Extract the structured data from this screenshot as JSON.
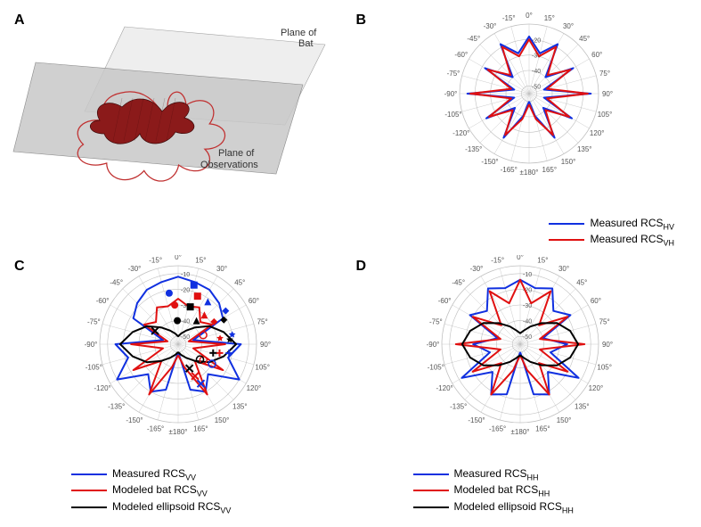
{
  "figure": {
    "panels": {
      "A": {
        "label": "A",
        "labels": {
          "plane_bat": "Plane of\nBat",
          "plane_obs": "Plane of\nObservations"
        },
        "colors": {
          "bat_fill": "#8b1a1a",
          "bat_edge": "#3a0808",
          "plane_bat_fill": "#ededed",
          "plane_obs_fill": "#c8c8c8",
          "rcs_outline": "#c03030"
        }
      },
      "B": {
        "label": "B",
        "polar": {
          "angle_ticks": [
            -180,
            -165,
            -150,
            -135,
            -120,
            -105,
            -90,
            -75,
            -60,
            -45,
            -30,
            -15,
            0,
            15,
            30,
            45,
            60,
            75,
            90,
            105,
            120,
            135,
            150,
            165,
            180
          ],
          "angle_label_fontsize": 8,
          "radial_ticks": [
            -50,
            -40,
            -30,
            -20
          ],
          "radial_min": -55,
          "radial_max": -10,
          "grid_color": "#bfbfbf",
          "tick_label_color": "#555555",
          "background": "#ffffff"
        },
        "series": [
          {
            "name": "Measured RCS_HV",
            "color": "#1030e0",
            "width": 2,
            "angles_deg": [
              -180,
              -165,
              -150,
              -135,
              -120,
              -105,
              -90,
              -75,
              -60,
              -45,
              -30,
              -15,
              0,
              15,
              30,
              45,
              60,
              75,
              90,
              105,
              120,
              135,
              150,
              165,
              180
            ],
            "values": [
              -50,
              -40,
              -22,
              -42,
              -23,
              -45,
              -15,
              -45,
              -22,
              -40,
              -18,
              -28,
              -18,
              -28,
              -18,
              -40,
              -22,
              -45,
              -15,
              -45,
              -23,
              -42,
              -22,
              -40,
              -50
            ]
          },
          {
            "name": "Measured RCS_VH",
            "color": "#e01010",
            "width": 2,
            "angles_deg": [
              -180,
              -165,
              -150,
              -135,
              -120,
              -105,
              -90,
              -75,
              -60,
              -45,
              -30,
              -15,
              0,
              15,
              30,
              45,
              60,
              75,
              90,
              105,
              120,
              135,
              150,
              165,
              180
            ],
            "values": [
              -48,
              -38,
              -24,
              -40,
              -25,
              -43,
              -17,
              -43,
              -24,
              -38,
              -20,
              -30,
              -20,
              -30,
              -20,
              -38,
              -24,
              -43,
              -17,
              -43,
              -25,
              -40,
              -24,
              -38,
              -48
            ]
          }
        ],
        "legend": [
          {
            "color": "#1030e0",
            "text": "Measured RCS",
            "sub": "HV"
          },
          {
            "color": "#e01010",
            "text": "Measured RCS",
            "sub": "VH"
          }
        ]
      },
      "C": {
        "label": "C",
        "polar": {
          "angle_ticks": [
            -180,
            -165,
            -150,
            -135,
            -120,
            -105,
            -90,
            -75,
            -60,
            -45,
            -30,
            -15,
            0,
            15,
            30,
            45,
            60,
            75,
            90,
            105,
            120,
            135,
            150,
            165,
            180
          ],
          "angle_label_fontsize": 8,
          "radial_ticks": [
            -50,
            -40,
            -30,
            -20,
            -10
          ],
          "radial_min": -55,
          "radial_max": -5,
          "grid_color": "#bfbfbf",
          "tick_label_color": "#555555",
          "background": "#ffffff"
        },
        "series": [
          {
            "name": "Measured RCS_VV",
            "color": "#1030e0",
            "width": 2,
            "angles_deg": [
              -180,
              -165,
              -150,
              -135,
              -120,
              -105,
              -90,
              -75,
              -60,
              -45,
              -30,
              -15,
              0,
              15,
              30,
              45,
              60,
              75,
              90,
              105,
              120,
              135,
              150,
              165,
              180
            ],
            "values": [
              -50,
              -25,
              -20,
              -28,
              -10,
              -22,
              -15,
              -45,
              -22,
              -18,
              -15,
              -14,
              -12,
              -14,
              -15,
              -18,
              -22,
              -45,
              -15,
              -22,
              -10,
              -28,
              -20,
              -25,
              -50
            ]
          },
          {
            "name": "Modeled bat RCS_VV",
            "color": "#e01010",
            "width": 2,
            "angles_deg": [
              -180,
              -165,
              -150,
              -135,
              -120,
              -105,
              -90,
              -75,
              -60,
              -45,
              -30,
              -15,
              0,
              15,
              30,
              45,
              60,
              75,
              90,
              105,
              120,
              135,
              150,
              165,
              180
            ],
            "values": [
              -48,
              -40,
              -18,
              -40,
              -22,
              -45,
              -25,
              -48,
              -30,
              -35,
              -28,
              -30,
              -26,
              -30,
              -28,
              -35,
              -30,
              -48,
              -25,
              -45,
              -22,
              -40,
              -18,
              -40,
              -48
            ]
          },
          {
            "name": "Modeled ellipsoid RCS_VV",
            "color": "#000000",
            "width": 2,
            "angles_deg": [
              -180,
              -165,
              -150,
              -135,
              -120,
              -105,
              -90,
              -75,
              -60,
              -45,
              -30,
              -15,
              0,
              15,
              30,
              45,
              60,
              75,
              90,
              105,
              120,
              135,
              150,
              165,
              180
            ],
            "values": [
              -50,
              -48,
              -45,
              -40,
              -32,
              -25,
              -18,
              -25,
              -32,
              -40,
              -45,
              -48,
              -50,
              -48,
              -45,
              -40,
              -32,
              -25,
              -18,
              -25,
              -32,
              -40,
              -45,
              -48,
              -50
            ]
          }
        ],
        "markers": [
          {
            "angle_deg": 15,
            "value": -16,
            "shape": "square",
            "fill": "#1030e0"
          },
          {
            "angle_deg": 22,
            "value": -22,
            "shape": "square",
            "fill": "#e01010"
          },
          {
            "angle_deg": 18,
            "value": -30,
            "shape": "square",
            "fill": "#000000"
          },
          {
            "angle_deg": 35,
            "value": -22,
            "shape": "triangle",
            "fill": "#1030e0"
          },
          {
            "angle_deg": 42,
            "value": -30,
            "shape": "triangle",
            "fill": "#e01010"
          },
          {
            "angle_deg": 38,
            "value": -36,
            "shape": "triangle",
            "fill": "#000000"
          },
          {
            "angle_deg": 55,
            "value": -18,
            "shape": "diamond",
            "fill": "#1030e0"
          },
          {
            "angle_deg": 58,
            "value": -28,
            "shape": "diamond",
            "fill": "#e01010"
          },
          {
            "angle_deg": 62,
            "value": -22,
            "shape": "diamond",
            "fill": "#000000"
          },
          {
            "angle_deg": 80,
            "value": -20,
            "shape": "star",
            "fill": "#1030e0"
          },
          {
            "angle_deg": 82,
            "value": -28,
            "shape": "star",
            "fill": "#e01010"
          },
          {
            "angle_deg": 85,
            "value": -22,
            "shape": "star",
            "fill": "#000000"
          },
          {
            "angle_deg": 100,
            "value": -22,
            "shape": "plus",
            "fill": "#1030e0"
          },
          {
            "angle_deg": 102,
            "value": -28,
            "shape": "plus",
            "fill": "#e01010"
          },
          {
            "angle_deg": 104,
            "value": -32,
            "shape": "plus",
            "fill": "#000000"
          },
          {
            "angle_deg": 120,
            "value": -30,
            "shape": "circle-open",
            "fill": "#1030e0"
          },
          {
            "angle_deg": 122,
            "value": -36,
            "shape": "circle-open",
            "fill": "#e01010"
          },
          {
            "angle_deg": 125,
            "value": -38,
            "shape": "circle-open",
            "fill": "#000000"
          },
          {
            "angle_deg": 150,
            "value": -26,
            "shape": "x",
            "fill": "#1030e0"
          },
          {
            "angle_deg": 152,
            "value": -32,
            "shape": "x",
            "fill": "#e01010"
          },
          {
            "angle_deg": 155,
            "value": -38,
            "shape": "x",
            "fill": "#000000"
          },
          {
            "angle_deg": -10,
            "value": -22,
            "shape": "circle",
            "fill": "#1030e0"
          },
          {
            "angle_deg": -5,
            "value": -30,
            "shape": "circle",
            "fill": "#e01010"
          },
          {
            "angle_deg": -2,
            "value": -40,
            "shape": "circle",
            "fill": "#000000"
          },
          {
            "angle_deg": -60,
            "value": -38,
            "shape": "x",
            "fill": "#000000"
          },
          {
            "angle_deg": 70,
            "value": -38,
            "shape": "circle-open",
            "fill": "#e01010"
          }
        ],
        "legend": [
          {
            "color": "#1030e0",
            "text": "Measured RCS",
            "sub": "VV"
          },
          {
            "color": "#e01010",
            "text": "Modeled bat RCS",
            "sub": "VV"
          },
          {
            "color": "#000000",
            "text": "Modeled ellipsoid RCS",
            "sub": "VV"
          }
        ]
      },
      "D": {
        "label": "D",
        "polar": {
          "angle_ticks": [
            -180,
            -165,
            -150,
            -135,
            -120,
            -105,
            -90,
            -75,
            -60,
            -45,
            -30,
            -15,
            0,
            15,
            30,
            45,
            60,
            75,
            90,
            105,
            120,
            135,
            150,
            165,
            180
          ],
          "angle_label_fontsize": 8,
          "radial_ticks": [
            -50,
            -40,
            -30,
            -20,
            -10
          ],
          "radial_min": -55,
          "radial_max": -5,
          "grid_color": "#bfbfbf",
          "tick_label_color": "#555555",
          "background": "#ffffff"
        },
        "series": [
          {
            "name": "Measured RCS_HH",
            "color": "#1030e0",
            "width": 2,
            "angles_deg": [
              -180,
              -165,
              -150,
              -135,
              -120,
              -105,
              -90,
              -75,
              -60,
              -45,
              -30,
              -15,
              0,
              15,
              30,
              45,
              60,
              75,
              90,
              105,
              120,
              135,
              150,
              165,
              180
            ],
            "values": [
              -50,
              -22,
              -18,
              -30,
              -12,
              -35,
              -25,
              -40,
              -18,
              -25,
              -14,
              -18,
              -14,
              -18,
              -14,
              -25,
              -18,
              -40,
              -25,
              -35,
              -12,
              -30,
              -18,
              -22,
              -50
            ]
          },
          {
            "name": "Modeled bat RCS_HH",
            "color": "#e01010",
            "width": 2,
            "angles_deg": [
              -180,
              -165,
              -150,
              -135,
              -120,
              -105,
              -90,
              -75,
              -60,
              -45,
              -30,
              -15,
              0,
              15,
              30,
              45,
              60,
              75,
              90,
              105,
              120,
              135,
              150,
              165,
              180
            ],
            "values": [
              -48,
              -38,
              -18,
              -38,
              -20,
              -42,
              -14,
              -42,
              -20,
              -38,
              -16,
              -28,
              -14,
              -28,
              -16,
              -38,
              -20,
              -42,
              -14,
              -42,
              -20,
              -38,
              -18,
              -38,
              -48
            ]
          },
          {
            "name": "Modeled ellipsoid RCS_HH",
            "color": "#000000",
            "width": 2,
            "angles_deg": [
              -180,
              -165,
              -150,
              -135,
              -120,
              -105,
              -90,
              -75,
              -60,
              -45,
              -30,
              -15,
              0,
              15,
              30,
              45,
              60,
              75,
              90,
              105,
              120,
              135,
              150,
              165,
              180
            ],
            "values": [
              -48,
              -46,
              -42,
              -36,
              -28,
              -22,
              -18,
              -22,
              -28,
              -36,
              -42,
              -46,
              -48,
              -46,
              -42,
              -36,
              -28,
              -22,
              -18,
              -22,
              -28,
              -36,
              -42,
              -46,
              -48
            ]
          }
        ],
        "legend": [
          {
            "color": "#1030e0",
            "text": "Measured RCS",
            "sub": "HH"
          },
          {
            "color": "#e01010",
            "text": "Modeled bat RCS",
            "sub": "HH"
          },
          {
            "color": "#000000",
            "text": "Modeled ellipsoid RCS",
            "sub": "HH"
          }
        ]
      }
    }
  }
}
